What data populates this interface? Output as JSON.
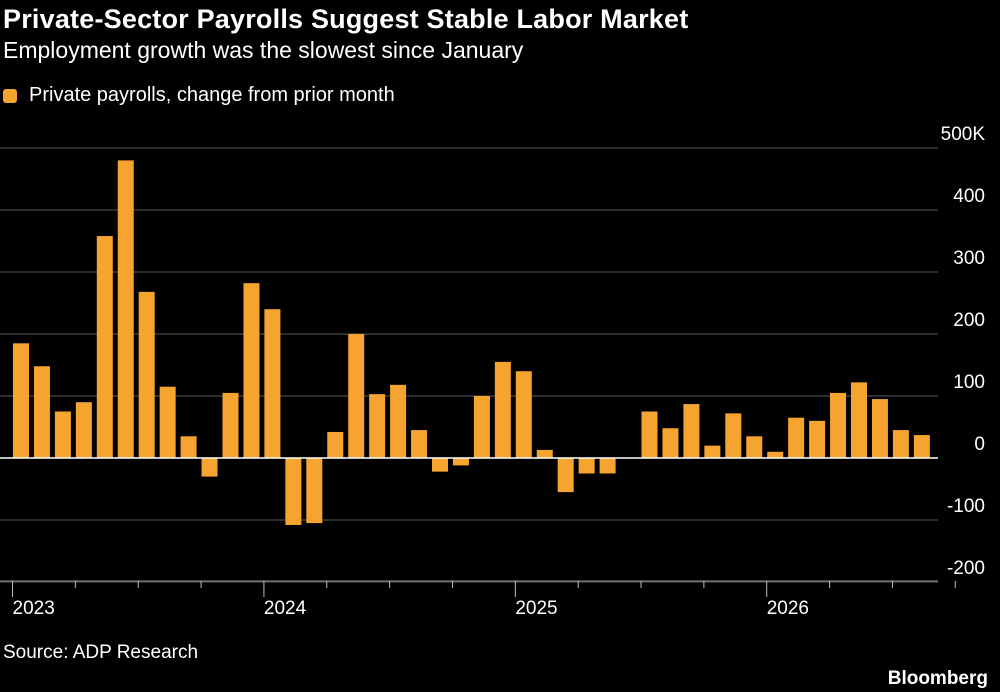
{
  "header": {
    "title": "Private-Sector Payrolls Suggest Stable Labor Market",
    "subtitle": "Employment growth was the slowest since January"
  },
  "legend": {
    "label": "Private payrolls, change from prior month",
    "color": "#f5a42f"
  },
  "footer": {
    "source": "Source: ADP Research",
    "brand": "Bloomberg"
  },
  "chart_data": {
    "type": "bar",
    "ylim": [
      -200,
      500
    ],
    "y_ticks": [
      {
        "value": 500,
        "label": "500K"
      },
      {
        "value": 400,
        "label": "400"
      },
      {
        "value": 300,
        "label": "300"
      },
      {
        "value": 200,
        "label": "200"
      },
      {
        "value": 100,
        "label": "100"
      },
      {
        "value": 0,
        "label": "0"
      },
      {
        "value": -100,
        "label": "-100"
      },
      {
        "value": -200,
        "label": "-200"
      }
    ],
    "x_year_labels": [
      "2023",
      "2024",
      "2025",
      "2026"
    ],
    "grid": true,
    "legend_position": "top-left",
    "series": [
      {
        "name": "Private payrolls, change from prior month",
        "color": "#f5a42f",
        "values": [
          185,
          148,
          75,
          90,
          358,
          480,
          268,
          115,
          35,
          -30,
          105,
          282,
          240,
          -108,
          -105,
          42,
          200,
          103,
          118,
          45,
          -22,
          -12,
          100,
          155,
          140,
          13,
          -55,
          -25,
          -25,
          0,
          75,
          48,
          87,
          20,
          72,
          35,
          10,
          65,
          60,
          105,
          122,
          95,
          45,
          37
        ]
      }
    ]
  }
}
